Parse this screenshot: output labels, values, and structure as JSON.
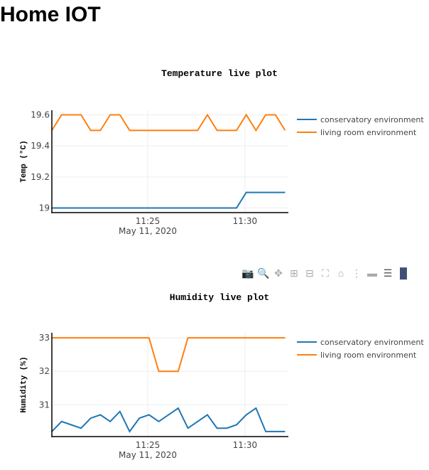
{
  "page": {
    "title": "Home IOT"
  },
  "modebar": {
    "icons": [
      "camera-icon",
      "zoom-icon",
      "pan-icon",
      "zoom-in-icon",
      "zoom-out-icon",
      "autoscale-icon",
      "home-icon",
      "spike-lines-icon",
      "hover-closest-icon",
      "hover-compare-icon",
      "plotly-logo-icon"
    ]
  },
  "chart_data": [
    {
      "type": "line",
      "title": "Temperature live plot",
      "xlabel": "",
      "ylabel": "Temp (°C)",
      "date_label": "May 11, 2020",
      "x_ticks": [
        "11:25",
        "11:30"
      ],
      "y_ticks": [
        19,
        19.2,
        19.4,
        19.6
      ],
      "y_tick_labels": [
        "19",
        "19.2",
        "19.4",
        "19.6"
      ],
      "ylim": [
        18.97,
        19.63
      ],
      "xlim": [
        "11:20:04",
        "11:32:14"
      ],
      "grid": true,
      "legend": "right",
      "x": [
        "11:20:04",
        "11:20:34",
        "11:21:04",
        "11:21:34",
        "11:22:04",
        "11:22:34",
        "11:23:04",
        "11:23:34",
        "11:24:04",
        "11:24:34",
        "11:25:04",
        "11:25:34",
        "11:26:04",
        "11:26:34",
        "11:27:04",
        "11:27:34",
        "11:28:04",
        "11:28:34",
        "11:29:04",
        "11:29:34",
        "11:30:04",
        "11:30:34",
        "11:31:04",
        "11:31:34",
        "11:32:04"
      ],
      "series": [
        {
          "name": "conservatory environment",
          "color": "#1f77b4",
          "values": [
            19,
            19,
            19,
            19,
            19,
            19,
            19,
            19,
            19,
            19,
            19,
            19,
            19,
            19,
            19,
            19,
            19,
            19,
            19,
            19,
            19.1,
            19.1,
            19.1,
            19.1,
            19.1
          ]
        },
        {
          "name": "living room environment",
          "color": "#ff7f0e",
          "values": [
            19.5,
            19.6,
            19.6,
            19.6,
            19.5,
            19.5,
            19.6,
            19.6,
            19.5,
            19.5,
            19.5,
            19.5,
            19.5,
            19.5,
            19.5,
            19.5,
            19.6,
            19.5,
            19.5,
            19.5,
            19.6,
            19.5,
            19.6,
            19.6,
            19.5
          ]
        }
      ]
    },
    {
      "type": "line",
      "title": "Humidity live plot",
      "xlabel": "",
      "ylabel": "Humidity (%)",
      "date_label": "May 11, 2020",
      "x_ticks": [
        "11:25",
        "11:30"
      ],
      "y_ticks": [
        31,
        32,
        33
      ],
      "y_tick_labels": [
        "31",
        "32",
        "33"
      ],
      "ylim": [
        30.05,
        33.15
      ],
      "xlim": [
        "11:20:04",
        "11:32:14"
      ],
      "grid": true,
      "legend": "right",
      "x": [
        "11:20:04",
        "11:20:34",
        "11:21:04",
        "11:21:34",
        "11:22:04",
        "11:22:34",
        "11:23:04",
        "11:23:34",
        "11:24:04",
        "11:24:34",
        "11:25:04",
        "11:25:34",
        "11:26:04",
        "11:26:34",
        "11:27:04",
        "11:27:34",
        "11:28:04",
        "11:28:34",
        "11:29:04",
        "11:29:34",
        "11:30:04",
        "11:30:34",
        "11:31:04",
        "11:31:34",
        "11:32:04"
      ],
      "series": [
        {
          "name": "conservatory environment",
          "color": "#1f77b4",
          "values": [
            30.2,
            30.5,
            30.4,
            30.3,
            30.6,
            30.7,
            30.5,
            30.8,
            30.2,
            30.6,
            30.7,
            30.5,
            30.7,
            30.9,
            30.3,
            30.5,
            30.7,
            30.3,
            30.3,
            30.4,
            30.7,
            30.9,
            30.2,
            30.2,
            30.2
          ]
        },
        {
          "name": "living room environment",
          "color": "#ff7f0e",
          "values": [
            33,
            33,
            33,
            33,
            33,
            33,
            33,
            33,
            33,
            33,
            33,
            32,
            32,
            32,
            33,
            33,
            33,
            33,
            33,
            33,
            33,
            33,
            33,
            33,
            33
          ]
        }
      ]
    }
  ]
}
